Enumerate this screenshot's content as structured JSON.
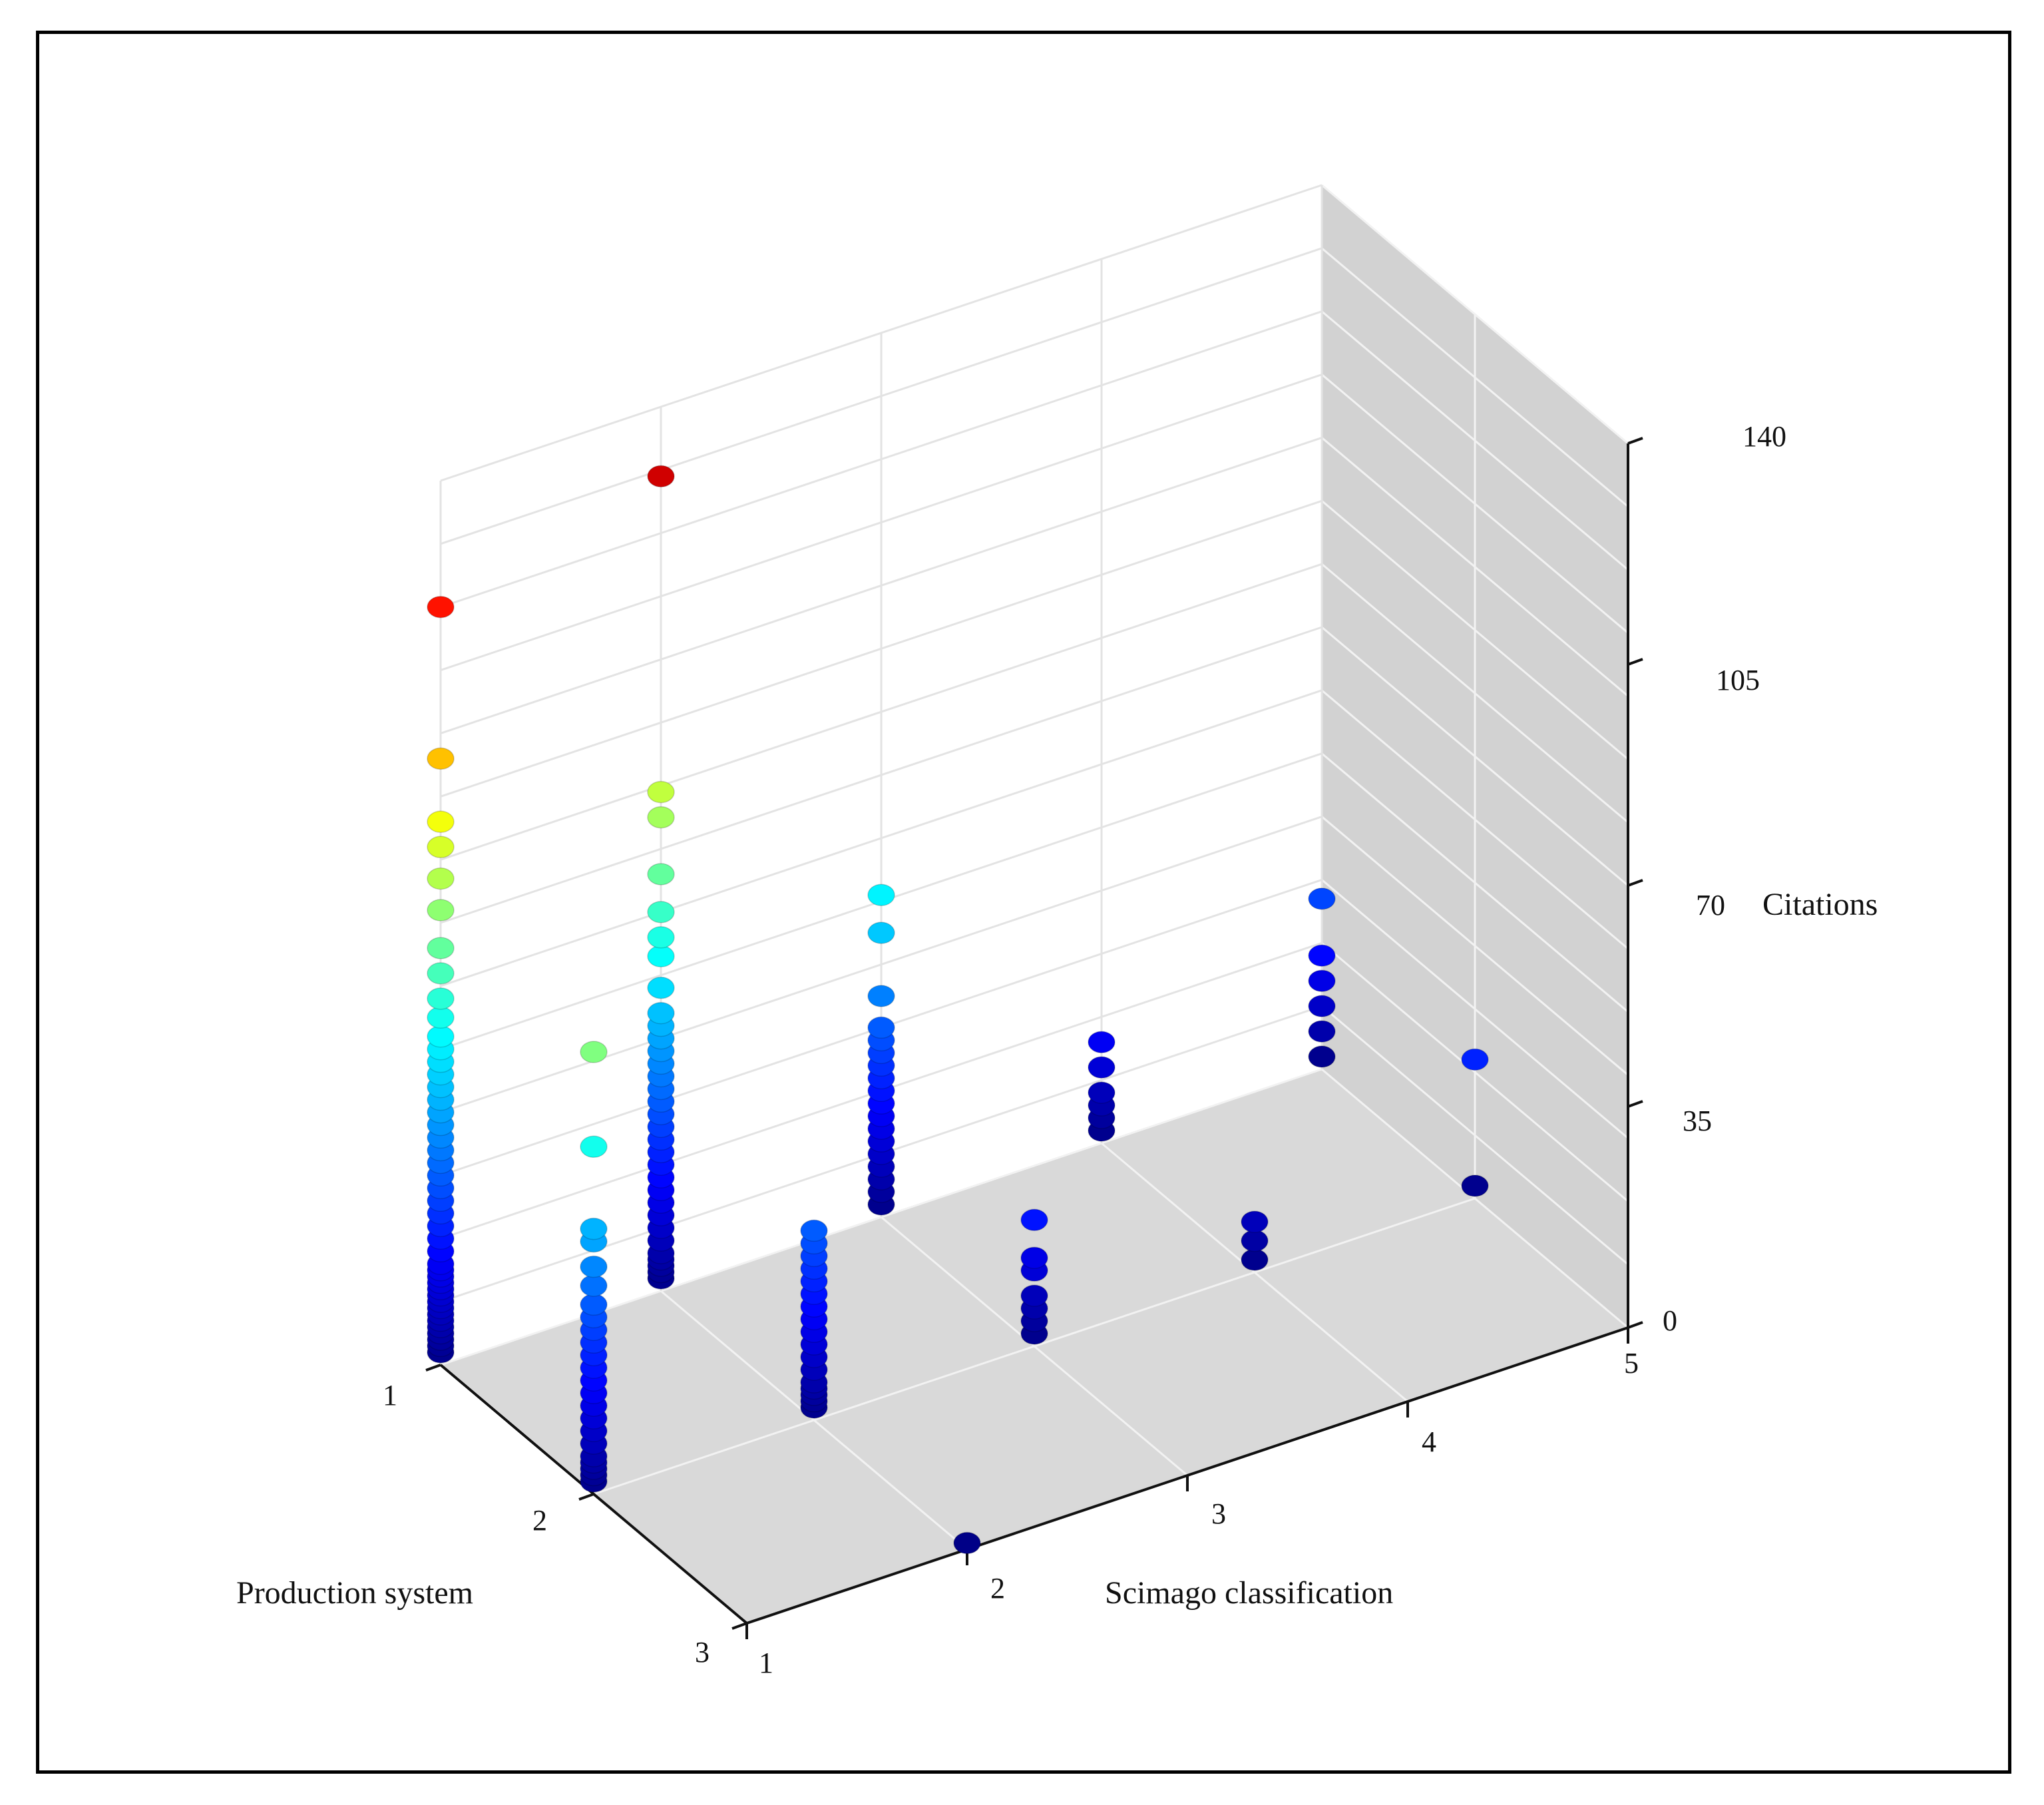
{
  "chart_data": {
    "type": "scatter",
    "title": "",
    "projection": "3d",
    "axes": {
      "x": {
        "label": "Scimago classification",
        "range": [
          1,
          5
        ],
        "ticks": [
          "1",
          "2",
          "3",
          "4",
          "5"
        ]
      },
      "y": {
        "label": "Production system",
        "range": [
          1,
          3
        ],
        "ticks": [
          "1",
          "2",
          "3"
        ]
      },
      "z": {
        "label": "Citations",
        "range": [
          0,
          140
        ],
        "ticks": [
          "0",
          "35",
          "70",
          "105",
          "140"
        ]
      }
    },
    "grid": true,
    "color_scale": "jet colormap mapped to Citations (blue = low, red = high)",
    "columns": [
      {
        "scimago": 1,
        "production": 1,
        "citations": [
          2,
          3,
          4,
          5,
          6,
          7,
          8,
          9,
          10,
          11,
          12,
          13,
          14,
          15,
          16,
          18,
          20,
          22,
          24,
          26,
          28,
          30,
          32,
          34,
          36,
          38,
          40,
          42,
          44,
          46,
          48,
          50,
          52,
          55,
          58,
          62,
          66,
          72,
          77,
          82,
          86,
          96,
          120
        ]
      },
      {
        "scimago": 1,
        "production": 2,
        "citations": [
          2,
          3,
          4,
          5,
          6,
          8,
          10,
          12,
          14,
          16,
          18,
          20,
          22,
          24,
          26,
          28,
          30,
          33,
          36,
          40,
          42,
          55,
          70
        ]
      },
      {
        "scimago": 1,
        "production": 3,
        "citations": []
      },
      {
        "scimago": 2,
        "production": 1,
        "citations": [
          2,
          3,
          4,
          5,
          6,
          8,
          10,
          12,
          14,
          16,
          18,
          20,
          22,
          24,
          26,
          28,
          30,
          32,
          34,
          36,
          38,
          40,
          42,
          44,
          48,
          53,
          56,
          60,
          66,
          75,
          79,
          129
        ]
      },
      {
        "scimago": 2,
        "production": 2,
        "citations": [
          2,
          3,
          4,
          5,
          6,
          8,
          10,
          12,
          14,
          16,
          18,
          20,
          22,
          24,
          26,
          28,
          30
        ]
      },
      {
        "scimago": 2,
        "production": 3,
        "citations": [
          1
        ]
      },
      {
        "scimago": 3,
        "production": 1,
        "citations": [
          2,
          4,
          6,
          8,
          10,
          12,
          14,
          16,
          18,
          20,
          22,
          24,
          26,
          28,
          30,
          35,
          45,
          51
        ]
      },
      {
        "scimago": 3,
        "production": 2,
        "citations": [
          2,
          4,
          6,
          8,
          12,
          14,
          20
        ]
      },
      {
        "scimago": 3,
        "production": 3,
        "citations": []
      },
      {
        "scimago": 4,
        "production": 1,
        "citations": [
          2,
          4,
          6,
          8,
          12,
          16
        ]
      },
      {
        "scimago": 4,
        "production": 2,
        "citations": [
          2,
          5,
          8
        ]
      },
      {
        "scimago": 4,
        "production": 3,
        "citations": []
      },
      {
        "scimago": 5,
        "production": 1,
        "citations": [
          2,
          6,
          10,
          14,
          18,
          27
        ]
      },
      {
        "scimago": 5,
        "production": 2,
        "citations": [
          2,
          22
        ]
      },
      {
        "scimago": 5,
        "production": 3,
        "citations": []
      }
    ],
    "colors": {
      "floor": "#d9d9d9",
      "right_wall": "#d2d2d2",
      "grid_line": "#f2f2f2",
      "back_wall_grid": "#e3e3e3",
      "axis_line": "#111111"
    }
  }
}
